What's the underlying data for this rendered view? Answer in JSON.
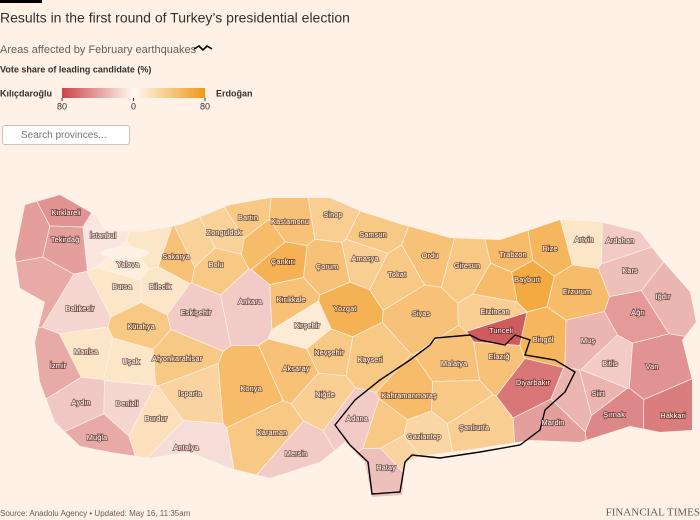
{
  "title": "Results in the first round of Turkey’s presidential election",
  "subtitle": "Areas affected by February earthquakes",
  "scale_title": "Vote share of leading candidate (%)",
  "legend": {
    "left": "Kılıçdaroğlu",
    "right": "Erdoğan",
    "ticks": [
      {
        "value": -80,
        "label": "80"
      },
      0,
      80
    ],
    "colors": {
      "low": "#c9454a",
      "mid": "#fff8f0",
      "high": "#f0981a"
    }
  },
  "search_placeholder": "Search provinces...",
  "provinces": [
    {
      "name": "Kırklareli",
      "value": -45
    },
    {
      "name": "Tekirdağ",
      "value": -40
    },
    {
      "name": "İstanbul",
      "value": -8
    },
    {
      "name": "Yalova",
      "value": 8
    },
    {
      "name": "Sakarya",
      "value": 45
    },
    {
      "name": "Bolu",
      "value": 40
    },
    {
      "name": "Zonguldak",
      "value": 32
    },
    {
      "name": "Bartın",
      "value": 40
    },
    {
      "name": "Kastamonu",
      "value": 45
    },
    {
      "name": "Sinop",
      "value": 35
    },
    {
      "name": "Samsun",
      "value": 40
    },
    {
      "name": "Çankırı",
      "value": 58
    },
    {
      "name": "Çorum",
      "value": 45
    },
    {
      "name": "Amasya",
      "value": 35
    },
    {
      "name": "Tokat",
      "value": 40
    },
    {
      "name": "Ordu",
      "value": 45
    },
    {
      "name": "Giresun",
      "value": 40
    },
    {
      "name": "Trabzon",
      "value": 50
    },
    {
      "name": "Rize",
      "value": 55
    },
    {
      "name": "Artvin",
      "value": 15
    },
    {
      "name": "Ardahan",
      "value": -20
    },
    {
      "name": "Kars",
      "value": -25
    },
    {
      "name": "Iğdır",
      "value": -30
    },
    {
      "name": "Ağrı",
      "value": -42
    },
    {
      "name": "Erzurum",
      "value": 50
    },
    {
      "name": "Bayburt",
      "value": 65
    },
    {
      "name": "Erzincan",
      "value": 35
    },
    {
      "name": "Tunceli",
      "value": -70
    },
    {
      "name": "Bingöl",
      "value": 55
    },
    {
      "name": "Muş",
      "value": -30
    },
    {
      "name": "Bitlis",
      "value": -20
    },
    {
      "name": "Van",
      "value": -45
    },
    {
      "name": "Siirt",
      "value": -30
    },
    {
      "name": "Hakkari",
      "value": -55
    },
    {
      "name": "Şırnak",
      "value": -50
    },
    {
      "name": "Mardin",
      "value": -40
    },
    {
      "name": "Diyarbakır",
      "value": -58
    },
    {
      "name": "Elazığ",
      "value": 45
    },
    {
      "name": "Malatya",
      "value": 45
    },
    {
      "name": "Sivas",
      "value": 45
    },
    {
      "name": "Yozgat",
      "value": 58
    },
    {
      "name": "Kırıkkale",
      "value": 45
    },
    {
      "name": "Ankara",
      "value": -20
    },
    {
      "name": "Bilecik",
      "value": 15
    },
    {
      "name": "Bursa",
      "value": 15
    },
    {
      "name": "Balıkesir",
      "value": -15
    },
    {
      "name": "Eskişehir",
      "value": -20
    },
    {
      "name": "Kütahya",
      "value": 40
    },
    {
      "name": "Uşak",
      "value": 15
    },
    {
      "name": "Manisa",
      "value": 15
    },
    {
      "name": "İzmir",
      "value": -35
    },
    {
      "name": "Aydın",
      "value": -22
    },
    {
      "name": "Muğla",
      "value": -35
    },
    {
      "name": "Denizli",
      "value": -15
    },
    {
      "name": "Afyonkarahisar",
      "value": 40
    },
    {
      "name": "Isparta",
      "value": 30
    },
    {
      "name": "Burdur",
      "value": 20
    },
    {
      "name": "Antalya",
      "value": -12
    },
    {
      "name": "Konya",
      "value": 50
    },
    {
      "name": "Karaman",
      "value": 40
    },
    {
      "name": "Kırşehir",
      "value": 10
    },
    {
      "name": "Nevşehir",
      "value": 40
    },
    {
      "name": "Aksaray",
      "value": 45
    },
    {
      "name": "Niğde",
      "value": 35
    },
    {
      "name": "Kayseri",
      "value": 40
    },
    {
      "name": "Mersin",
      "value": -20
    },
    {
      "name": "Adana",
      "value": -20
    },
    {
      "name": "Hatay",
      "value": -25
    },
    {
      "name": "Kahramanmaraş",
      "value": 50
    },
    {
      "name": "Gaziantep",
      "value": 28
    },
    {
      "name": "Şanlıurfa",
      "value": 35
    },
    {
      "name": null,
      "value": -40
    },
    {
      "name": null,
      "value": 15
    },
    {
      "name": null,
      "value": 32
    },
    {
      "name": null,
      "value": -35
    },
    {
      "name": null,
      "value": 50
    },
    {
      "name": null,
      "value": -30
    },
    {
      "name": null,
      "value": 40
    },
    {
      "name": null,
      "value": 40
    },
    {
      "name": null,
      "value": 30
    },
    {
      "name": null,
      "value": 50
    }
  ],
  "source": "Source: Anadolu Agency • Updated: May 16, 11:35am",
  "logo": "FINANCIAL TIMES"
}
